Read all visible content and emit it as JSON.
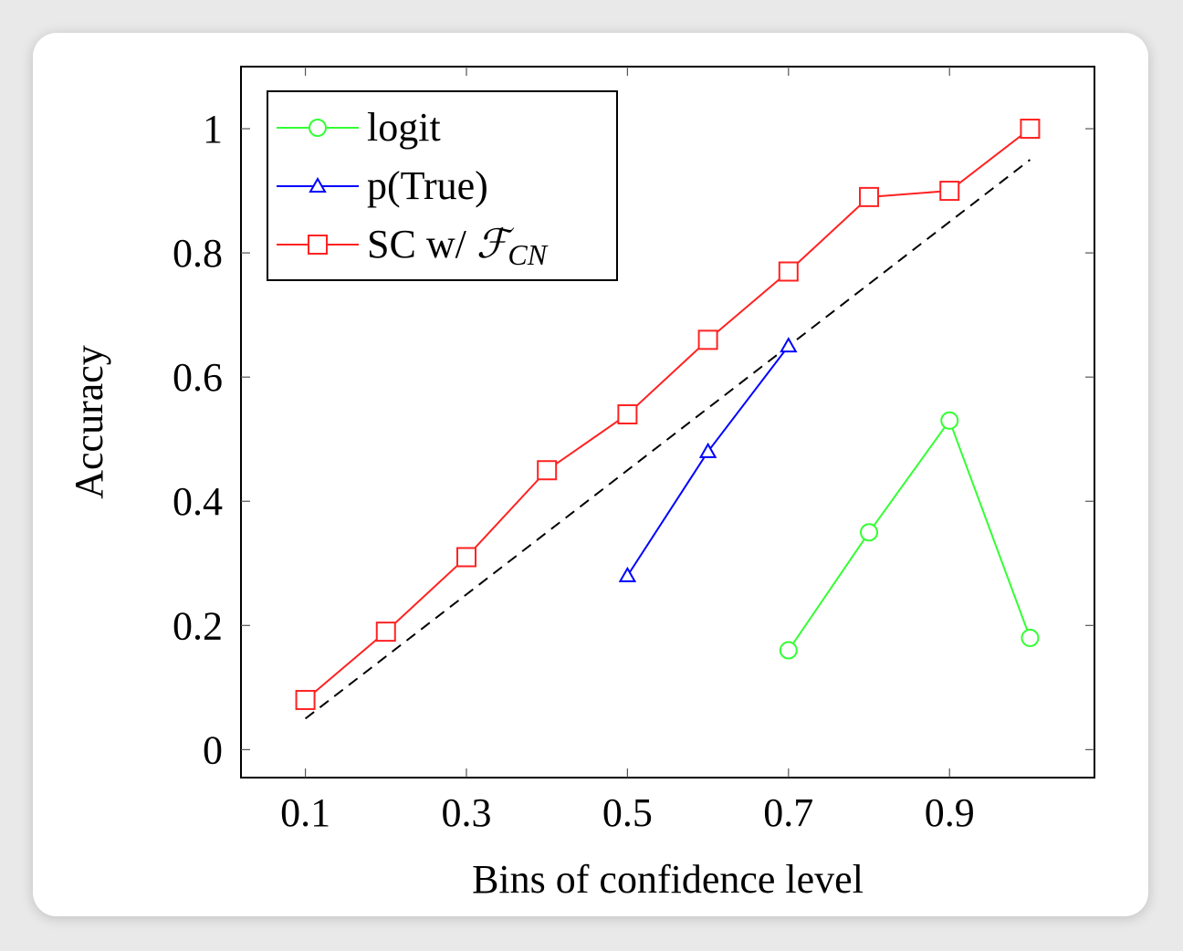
{
  "chart_data": {
    "type": "line",
    "xlabel": "Bins of confidence level",
    "ylabel": "Accuracy",
    "xlim": [
      0.02,
      1.08
    ],
    "ylim": [
      -0.045,
      1.1
    ],
    "xticks": [
      0.1,
      0.3,
      0.5,
      0.7,
      0.9
    ],
    "xtick_labels": [
      "0.1",
      "0.3",
      "0.5",
      "0.7",
      "0.9"
    ],
    "yticks": [
      0,
      0.2,
      0.4,
      0.6,
      0.8,
      1.0
    ],
    "ytick_labels": [
      "0",
      "0.2",
      "0.4",
      "0.6",
      "0.8",
      "1"
    ],
    "grid": false,
    "legend_position": "top-left",
    "reference_line": {
      "style": "dashed",
      "color": "#000000",
      "x": [
        0.1,
        1.0
      ],
      "y": [
        0.05,
        0.95
      ]
    },
    "series": [
      {
        "name": "logit",
        "color": "#33ff33",
        "marker": "circle",
        "x": [
          0.7,
          0.8,
          0.9,
          1.0
        ],
        "y": [
          0.16,
          0.35,
          0.53,
          0.18
        ]
      },
      {
        "name": "p(True)",
        "color": "#0000ff",
        "marker": "triangle",
        "x": [
          0.5,
          0.6,
          0.7
        ],
        "y": [
          0.28,
          0.48,
          0.65
        ]
      },
      {
        "name": "SC w/ ",
        "name_math": "ℱ",
        "name_sub": "CN",
        "color": "#ff2222",
        "marker": "square",
        "x": [
          0.1,
          0.2,
          0.3,
          0.4,
          0.5,
          0.6,
          0.7,
          0.8,
          0.9,
          1.0
        ],
        "y": [
          0.08,
          0.19,
          0.31,
          0.45,
          0.54,
          0.66,
          0.77,
          0.89,
          0.9,
          1.0
        ]
      }
    ]
  }
}
